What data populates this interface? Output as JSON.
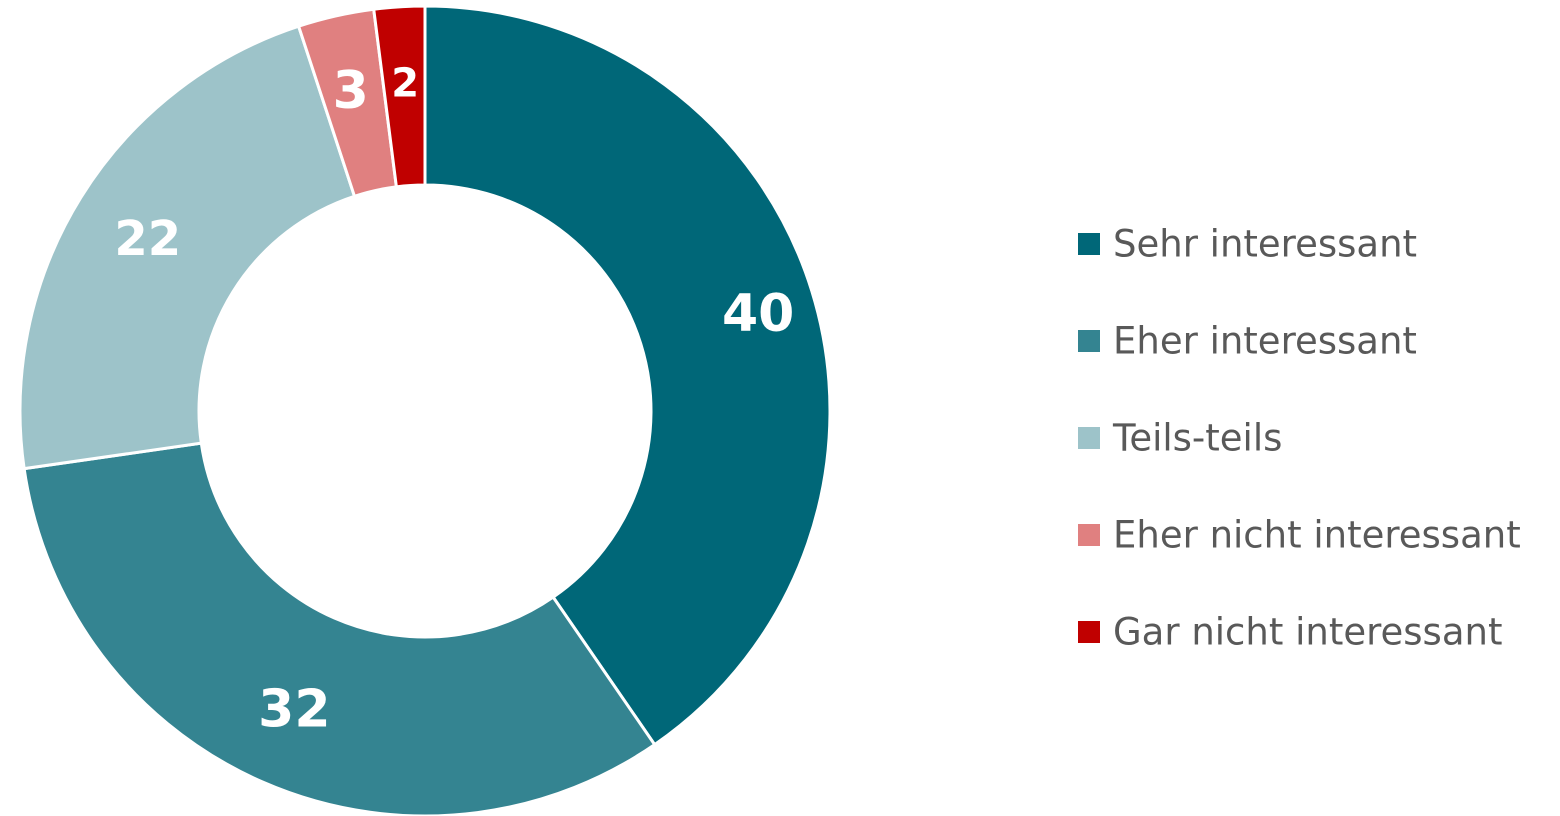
{
  "chart_data": {
    "type": "pie",
    "variant": "donut",
    "categories": [
      "Sehr interessant",
      "Eher interessant",
      "Teils-teils",
      "Eher nicht interessant",
      "Gar nicht interessant"
    ],
    "values": [
      40,
      32,
      22,
      3,
      2
    ],
    "colors": [
      "#006778",
      "#348491",
      "#9dc3c9",
      "#e08080",
      "#c00000"
    ],
    "data_labels": [
      "40",
      "32",
      "22",
      "3",
      "2"
    ],
    "legend_position": "right",
    "start_angle": "top",
    "direction": "clockwise",
    "title": ""
  }
}
